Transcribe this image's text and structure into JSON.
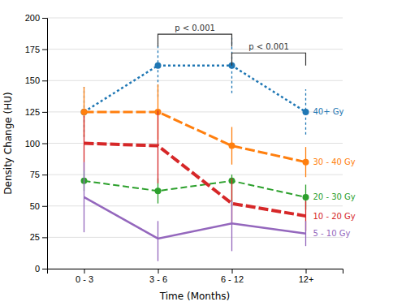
{
  "chart_data": {
    "type": "line",
    "xlabel": "Time (Months)",
    "ylabel": "Density Change (HU)",
    "categories": [
      "0 - 3",
      "3 - 6",
      "6 - 12",
      "12+"
    ],
    "ylim": [
      0,
      200
    ],
    "yticks": [
      0,
      25,
      50,
      75,
      100,
      125,
      150,
      175,
      200
    ],
    "grid": true,
    "series": [
      {
        "name": "40+ Gy",
        "values": [
          125,
          162,
          162,
          125
        ],
        "error_low": [
          20,
          25,
          22,
          18
        ],
        "error_high": [
          20,
          18,
          22,
          18
        ],
        "line_style": "dotted",
        "marker": "circle"
      },
      {
        "name": "30 - 40 Gy",
        "values": [
          125,
          125,
          98,
          85
        ],
        "error_low": [
          20,
          22,
          15,
          12
        ],
        "error_high": [
          20,
          22,
          15,
          12
        ],
        "line_style": "long_dash",
        "marker": "circle"
      },
      {
        "name": "20 - 30 Gy",
        "values": [
          70,
          62,
          70,
          57
        ],
        "error_low": [
          8,
          10,
          20,
          10
        ],
        "error_high": [
          8,
          10,
          5,
          10
        ],
        "line_style": "medium_dash",
        "marker": "circle"
      },
      {
        "name": "10 - 20 Gy",
        "values": [
          100,
          98,
          52,
          42
        ],
        "error_low": [
          22,
          30,
          15,
          12
        ],
        "error_high": [
          22,
          28,
          20,
          12
        ],
        "line_style": "heavy_dash",
        "marker": "none"
      },
      {
        "name": "5 - 10 Gy",
        "values": [
          57,
          24,
          36,
          28
        ],
        "error_low": [
          28,
          18,
          22,
          10
        ],
        "error_high": [
          28,
          14,
          18,
          10
        ],
        "line_style": "solid",
        "marker": "none"
      }
    ],
    "annotations": [
      {
        "type": "bracket",
        "x1": "3 - 6",
        "x2": "6 - 12",
        "y": 187,
        "drop": 10,
        "text": "p < 0.001"
      },
      {
        "type": "bracket",
        "x1": "6 - 12",
        "x2": "12+",
        "y": 172,
        "drop": 10,
        "text": "p < 0.001"
      }
    ]
  }
}
